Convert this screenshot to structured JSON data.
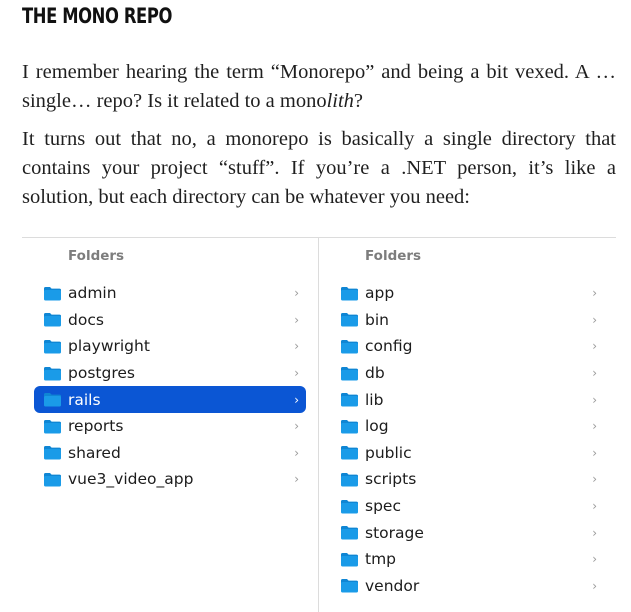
{
  "heading": "THE MONO REPO",
  "paragraphs": [
    "I remember hearing the term “Monorepo” and being a bit vexed. A … single… repo? Is it related to a mono",
    "It turns out that no, a monorepo is basically a single directory that contains your project “stuff”. If you’re a .NET person, it’s like a solution, but each directory can be whatever you need:"
  ],
  "paragraph1_emphasis": "lith",
  "paragraph1_end": "?",
  "finder": {
    "left_column": {
      "header": "Folders",
      "items": [
        {
          "label": "admin",
          "chevron": "›"
        },
        {
          "label": "docs",
          "chevron": "›"
        },
        {
          "label": "playwright",
          "chevron": "›"
        },
        {
          "label": "postgres",
          "chevron": "›"
        },
        {
          "label": "rails",
          "chevron": "›",
          "selected": true
        },
        {
          "label": "reports",
          "chevron": "›"
        },
        {
          "label": "shared",
          "chevron": "›"
        },
        {
          "label": "vue3_video_app",
          "chevron": "›"
        }
      ]
    },
    "right_column": {
      "header": "Folders",
      "items": [
        {
          "label": "app",
          "chevron": "›"
        },
        {
          "label": "bin",
          "chevron": "›"
        },
        {
          "label": "config",
          "chevron": "›"
        },
        {
          "label": "db",
          "chevron": "›"
        },
        {
          "label": "lib",
          "chevron": "›"
        },
        {
          "label": "log",
          "chevron": "›"
        },
        {
          "label": "public",
          "chevron": "›"
        },
        {
          "label": "scripts",
          "chevron": "›"
        },
        {
          "label": "spec",
          "chevron": "›"
        },
        {
          "label": "storage",
          "chevron": "›"
        },
        {
          "label": "tmp",
          "chevron": "›"
        },
        {
          "label": "vendor",
          "chevron": "›"
        }
      ]
    },
    "icon": "folder-icon",
    "colors": {
      "folder": "#1a9be8",
      "folder_tab": "#0f86d4",
      "selection": "#0b56d4"
    }
  }
}
